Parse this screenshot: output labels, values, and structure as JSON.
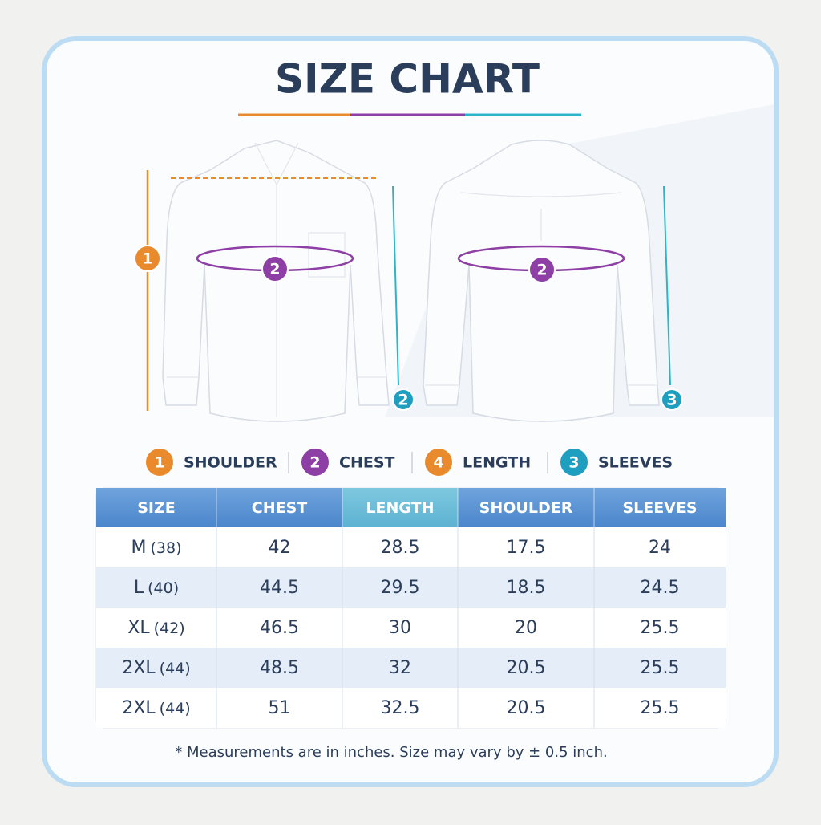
{
  "header": {
    "title": "SIZE CHART"
  },
  "diagram": {
    "front_markers": [
      "1",
      "2",
      "2"
    ],
    "back_markers": [
      "2",
      "3"
    ]
  },
  "legend": [
    {
      "number": "1",
      "label": "SHOULDER"
    },
    {
      "number": "2",
      "label": "CHEST"
    },
    {
      "number": "4",
      "label": "LENGTH"
    },
    {
      "number": "3",
      "label": "SLEEVES"
    }
  ],
  "table": {
    "headers": [
      "SIZE",
      "CHEST",
      "LENGTH",
      "SHOULDER",
      "SLEEVES"
    ],
    "rows": [
      {
        "size": "M",
        "size_note": "(38)",
        "values": [
          42,
          28.5,
          17.5,
          24
        ]
      },
      {
        "size": "L",
        "size_note": "(40)",
        "values": [
          44.5,
          29.5,
          18.5,
          24.5
        ]
      },
      {
        "size": "XL",
        "size_note": "(42)",
        "values": [
          46.5,
          30,
          20,
          25.5
        ]
      },
      {
        "size": "2XL",
        "size_note": "(44)",
        "values": [
          48.5,
          32,
          20.5,
          25.5
        ]
      },
      {
        "size": "2XL",
        "size_note": "(44)",
        "values": [
          51,
          32.5,
          20.5,
          25.5
        ]
      }
    ]
  },
  "footnote": "* Measurements are in inches. Size may vary by ± 0.5 inch."
}
